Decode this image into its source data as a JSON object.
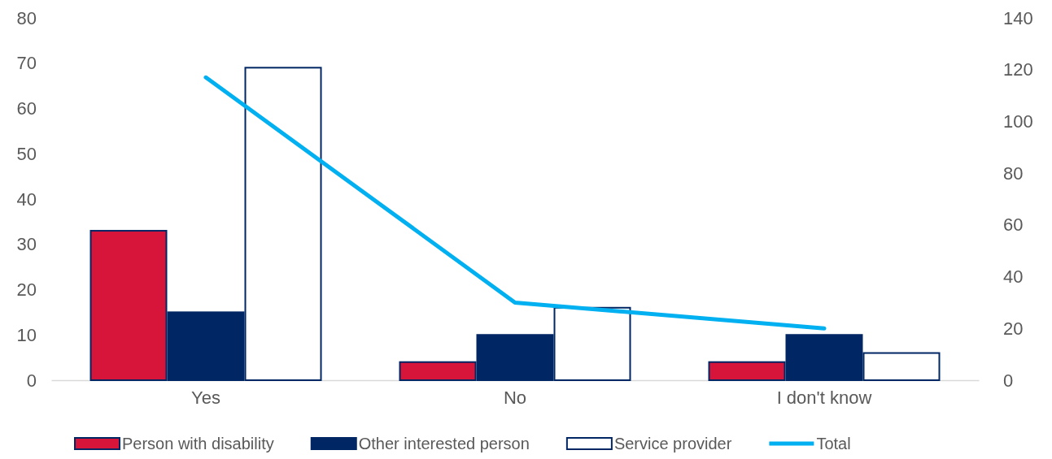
{
  "chart_data": {
    "type": "bar",
    "categories": [
      "Yes",
      "No",
      "I don't know"
    ],
    "series": [
      {
        "name": "Person with disability",
        "color": "#d7153a",
        "values": [
          33,
          4,
          4
        ]
      },
      {
        "name": "Other interested person",
        "color": "#002664",
        "values": [
          15,
          10,
          10
        ]
      },
      {
        "name": "Service provider",
        "color": "#ffffff",
        "values": [
          69,
          16,
          6
        ]
      },
      {
        "name": "Total",
        "type": "line",
        "axis": "y2",
        "color": "#00b0f0",
        "values": [
          117,
          30,
          20
        ]
      }
    ],
    "ylim": [
      0,
      80
    ],
    "yticks": [
      0,
      10,
      20,
      30,
      40,
      50,
      60,
      70,
      80
    ],
    "y2lim": [
      0,
      140
    ],
    "y2ticks": [
      0,
      20,
      40,
      60,
      80,
      100,
      120,
      140
    ],
    "grid": false,
    "legend": "bottom",
    "marker": "none",
    "line_style": "solid"
  }
}
